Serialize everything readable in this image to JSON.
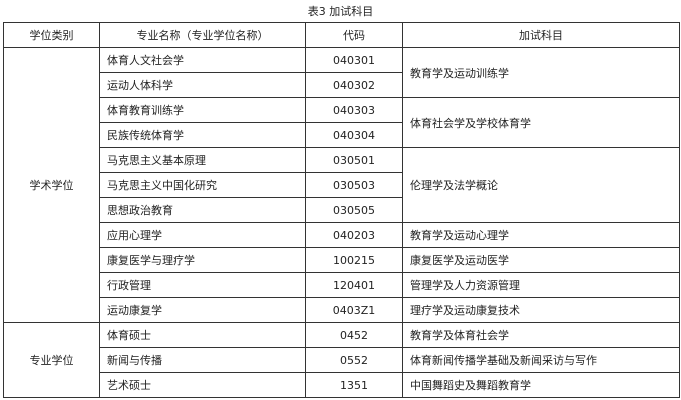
{
  "title": "表3  加试科目",
  "headers": [
    "学位类别",
    "专业名称（专业学位名称）",
    "代码",
    "加试科目"
  ],
  "groups": [
    {
      "category": "学术学位",
      "subject_groups": [
        {
          "subject": "教育学及运动训练学",
          "majors": [
            {
              "name": "体育人文社会学",
              "code": "040301"
            },
            {
              "name": "运动人体科学",
              "code": "040302"
            }
          ]
        },
        {
          "subject": "体育社会学及学校体育学",
          "majors": [
            {
              "name": "体育教育训练学",
              "code": "040303"
            },
            {
              "name": "民族传统体育学",
              "code": "040304"
            }
          ]
        },
        {
          "subject": "伦理学及法学概论",
          "majors": [
            {
              "name": "马克思主义基本原理",
              "code": "030501"
            },
            {
              "name": "马克思主义中国化研究",
              "code": "030503"
            },
            {
              "name": "思想政治教育",
              "code": "030505"
            }
          ]
        },
        {
          "subject": "教育学及运动心理学",
          "majors": [
            {
              "name": "应用心理学",
              "code": "040203"
            }
          ]
        },
        {
          "subject": "康复医学及运动医学",
          "majors": [
            {
              "name": "康复医学与理疗学",
              "code": "100215"
            }
          ]
        },
        {
          "subject": "管理学及人力资源管理",
          "majors": [
            {
              "name": "行政管理",
              "code": "120401"
            }
          ]
        },
        {
          "subject": "理疗学及运动康复技术",
          "majors": [
            {
              "name": "运动康复学",
              "code": "0403Z1"
            }
          ]
        }
      ]
    },
    {
      "category": "专业学位",
      "subject_groups": [
        {
          "subject": "教育学及体育社会学",
          "majors": [
            {
              "name": "体育硕士",
              "code": "0452"
            }
          ]
        },
        {
          "subject": "体育新闻传播学基础及新闻采访与写作",
          "majors": [
            {
              "name": "新闻与传播",
              "code": "0552"
            }
          ]
        },
        {
          "subject": "中国舞蹈史及舞蹈教育学",
          "majors": [
            {
              "name": "艺术硕士",
              "code": "1351"
            }
          ]
        }
      ]
    }
  ]
}
